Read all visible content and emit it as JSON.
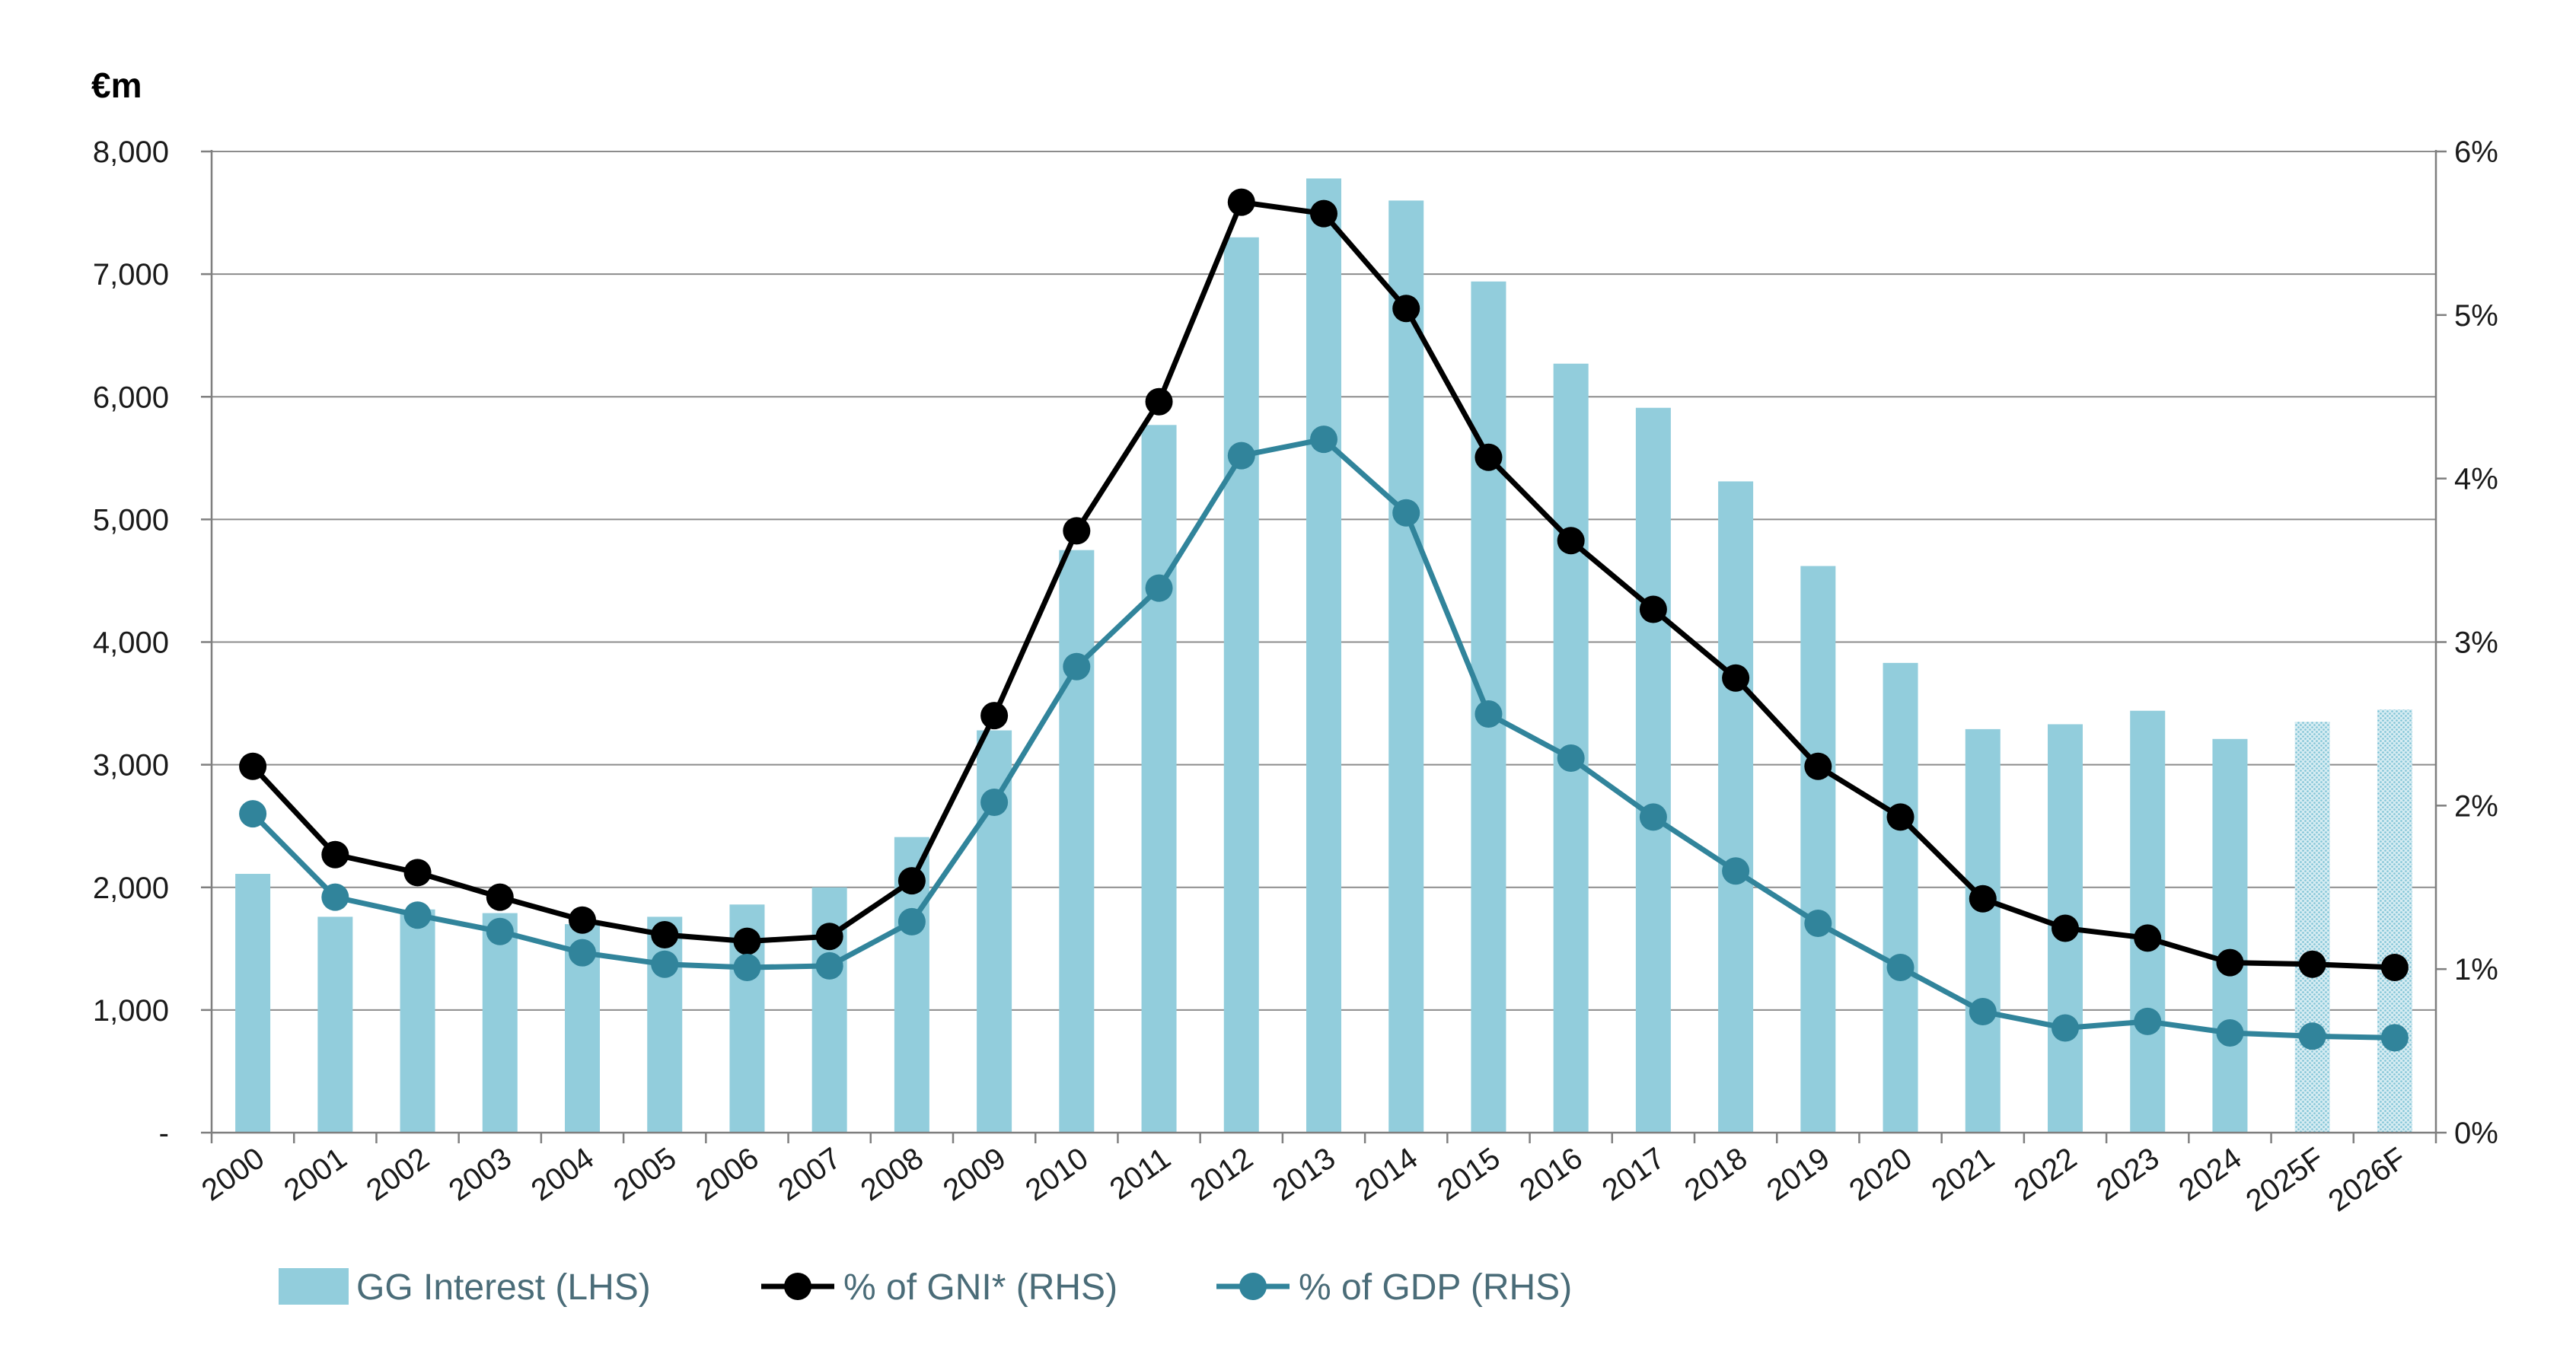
{
  "chart_data": {
    "type": "bar",
    "title": "",
    "left_axis_unit": "€m",
    "categories": [
      "2000",
      "2001",
      "2002",
      "2003",
      "2004",
      "2005",
      "2006",
      "2007",
      "2008",
      "2009",
      "2010",
      "2011",
      "2012",
      "2013",
      "2014",
      "2015",
      "2016",
      "2017",
      "2018",
      "2019",
      "2020",
      "2021",
      "2022",
      "2023",
      "2024",
      "2025F",
      "2026F"
    ],
    "forecast_categories": [
      "2025F",
      "2026F"
    ],
    "left_axis": {
      "ylim": [
        0,
        8000
      ],
      "ticks": [
        0,
        1000,
        2000,
        3000,
        4000,
        5000,
        6000,
        7000,
        8000
      ],
      "tick_labels": [
        "-",
        "1,000",
        "2,000",
        "3,000",
        "4,000",
        "5,000",
        "6,000",
        "7,000",
        "8,000"
      ]
    },
    "right_axis": {
      "ylim": [
        0,
        6
      ],
      "ticks": [
        0,
        1,
        2,
        3,
        4,
        5,
        6
      ],
      "tick_labels": [
        "0%",
        "1%",
        "2%",
        "3%",
        "4%",
        "5%",
        "6%"
      ]
    },
    "grid": true,
    "legend_position": "bottom-left",
    "series": [
      {
        "name": "GG Interest (LHS)",
        "type": "bar",
        "axis": "left",
        "color": "#92cddc",
        "values": [
          2110,
          1760,
          1820,
          1790,
          1700,
          1760,
          1860,
          2000,
          2410,
          3280,
          4750,
          5770,
          7300,
          7780,
          7600,
          6940,
          6270,
          5910,
          5310,
          4620,
          3830,
          3290,
          3330,
          3440,
          3210,
          3350,
          3450
        ]
      },
      {
        "name": "% of GNI* (RHS)",
        "type": "line",
        "axis": "right",
        "color": "#000000",
        "values": [
          2.24,
          1.7,
          1.59,
          1.44,
          1.3,
          1.21,
          1.17,
          1.2,
          1.54,
          2.55,
          3.68,
          4.47,
          5.69,
          5.62,
          5.04,
          4.13,
          3.62,
          3.2,
          2.78,
          2.24,
          1.93,
          1.43,
          1.25,
          1.19,
          1.04,
          1.03,
          1.01
        ]
      },
      {
        "name": "% of GDP (RHS)",
        "type": "line",
        "axis": "right",
        "color": "#31849b",
        "values": [
          1.95,
          1.44,
          1.33,
          1.23,
          1.1,
          1.03,
          1.01,
          1.02,
          1.29,
          2.02,
          2.85,
          3.33,
          4.14,
          4.24,
          3.79,
          2.56,
          2.29,
          1.93,
          1.6,
          1.28,
          1.01,
          0.74,
          0.64,
          0.68,
          0.61,
          0.59,
          0.58
        ]
      }
    ]
  }
}
